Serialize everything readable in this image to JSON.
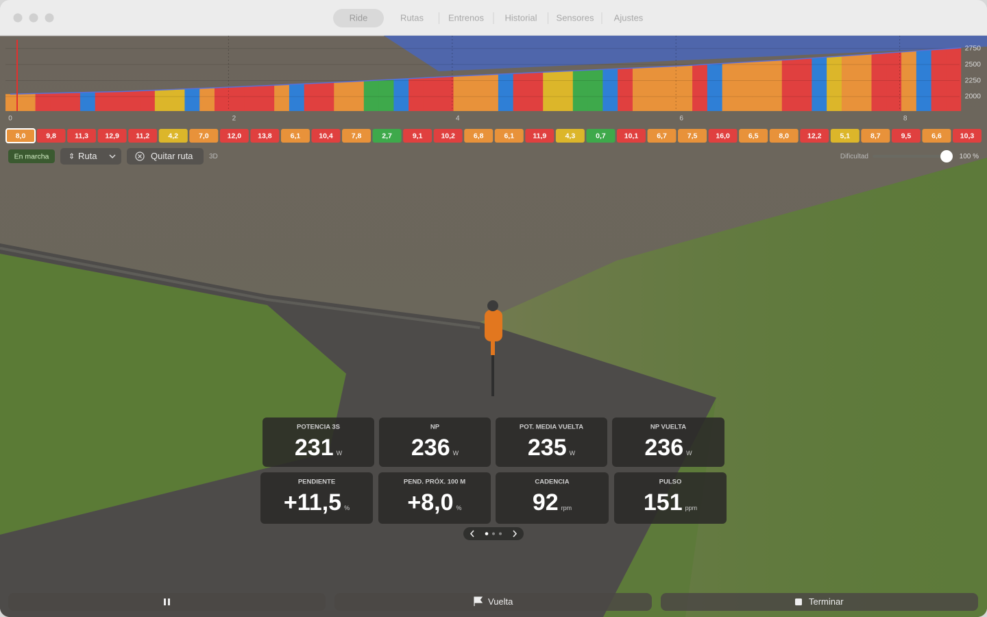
{
  "window": {
    "tabs": [
      "Ride",
      "Rutas",
      "Entrenos",
      "Historial",
      "Sensores",
      "Ajustes"
    ]
  },
  "profile": {
    "xlim": [
      0,
      8.5
    ],
    "ylim": [
      1775,
      2950
    ],
    "xticks": [
      0,
      2,
      4,
      6,
      8
    ],
    "yticks": [
      2000,
      2250,
      2500,
      2750
    ],
    "distance": [
      0,
      1,
      2,
      3,
      4,
      5,
      6,
      7,
      8,
      8.5
    ],
    "elevation": [
      2040,
      2080,
      2150,
      2230,
      2320,
      2400,
      2480,
      2580,
      2700,
      2760
    ],
    "line_color": "#5b6fd6"
  },
  "segments": [
    {
      "grade": "8,0",
      "color": "#e8923a"
    },
    {
      "grade": "9,8",
      "color": "#e0403f"
    },
    {
      "grade": "11,3",
      "color": "#e0403f"
    },
    {
      "grade": "12,9",
      "color": "#e0403f"
    },
    {
      "grade": "11,2",
      "color": "#e0403f"
    },
    {
      "grade": "4,2",
      "color": "#dcb62a"
    },
    {
      "grade": "7,0",
      "color": "#e8923a"
    },
    {
      "grade": "12,0",
      "color": "#e0403f"
    },
    {
      "grade": "13,8",
      "color": "#e0403f"
    },
    {
      "grade": "6,1",
      "color": "#e8923a"
    },
    {
      "grade": "10,4",
      "color": "#e0403f"
    },
    {
      "grade": "7,8",
      "color": "#e8923a"
    },
    {
      "grade": "2,7",
      "color": "#3ea94b"
    },
    {
      "grade": "9,1",
      "color": "#e0403f"
    },
    {
      "grade": "10,2",
      "color": "#e0403f"
    },
    {
      "grade": "6,8",
      "color": "#e8923a"
    },
    {
      "grade": "6,1",
      "color": "#e8923a"
    },
    {
      "grade": "11,9",
      "color": "#e0403f"
    },
    {
      "grade": "4,3",
      "color": "#dcb62a"
    },
    {
      "grade": "0,7",
      "color": "#3ea94b"
    },
    {
      "grade": "10,1",
      "color": "#e0403f"
    },
    {
      "grade": "6,7",
      "color": "#e8923a"
    },
    {
      "grade": "7,5",
      "color": "#e8923a"
    },
    {
      "grade": "16,0",
      "color": "#e0403f"
    },
    {
      "grade": "6,5",
      "color": "#e8923a"
    },
    {
      "grade": "8,0",
      "color": "#e8923a"
    },
    {
      "grade": "12,2",
      "color": "#e0403f"
    },
    {
      "grade": "5,1",
      "color": "#dcb62a"
    },
    {
      "grade": "8,7",
      "color": "#e8923a"
    },
    {
      "grade": "9,5",
      "color": "#e0403f"
    },
    {
      "grade": "6,6",
      "color": "#e8923a"
    },
    {
      "grade": "10,3",
      "color": "#e0403f"
    }
  ],
  "controls": {
    "status": "En marcha",
    "route_menu": "Ruta",
    "remove_route": "Quitar ruta",
    "view_mode": "3D",
    "difficulty_label": "Dificultad",
    "difficulty": "100 %"
  },
  "metrics": [
    {
      "label": "POTENCIA 3S",
      "value": "231",
      "unit": "W"
    },
    {
      "label": "NP",
      "value": "236",
      "unit": "W"
    },
    {
      "label": "POT. MEDIA VUELTA",
      "value": "235",
      "unit": "W"
    },
    {
      "label": "NP VUELTA",
      "value": "236",
      "unit": "W"
    },
    {
      "label": "PENDIENTE",
      "value": "+11,5",
      "unit": "%"
    },
    {
      "label": "PEND. PRÓX. 100 M",
      "value": "+8,0",
      "unit": "%"
    },
    {
      "label": "CADENCIA",
      "value": "92",
      "unit": "rpm"
    },
    {
      "label": "PULSO",
      "value": "151",
      "unit": "ppm"
    }
  ],
  "actions": {
    "lap": "Vuelta",
    "finish": "Terminar"
  }
}
